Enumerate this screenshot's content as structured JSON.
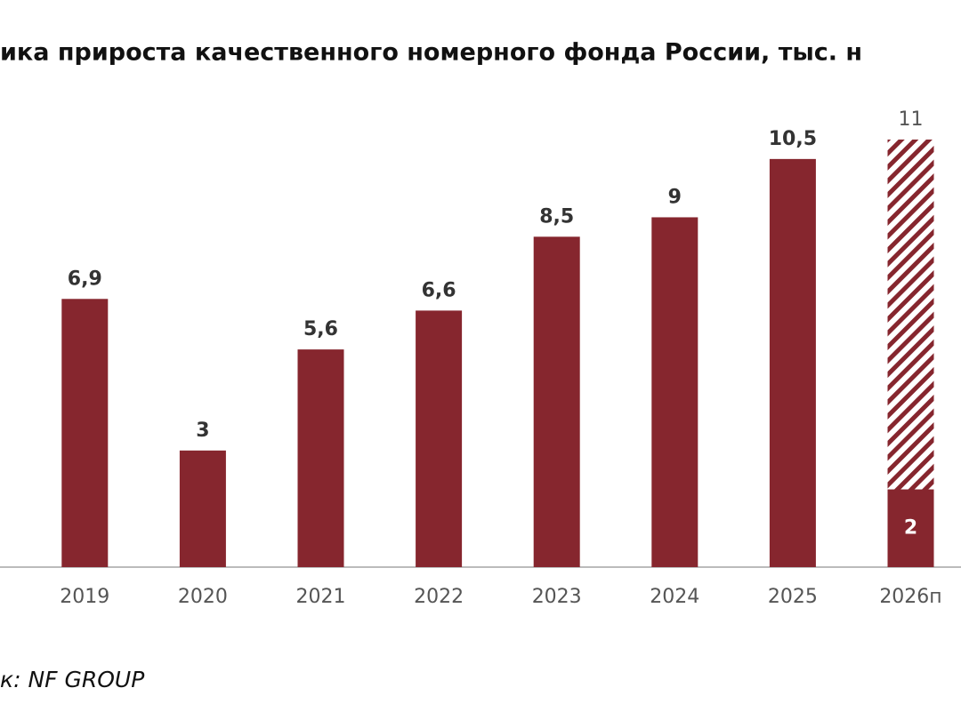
{
  "chart_data": {
    "type": "bar",
    "title": "ика прироста качественного номерного фонда России, тыс. н",
    "source": "к: NF GROUP",
    "categories": [
      "2019",
      "2020",
      "2021",
      "2022",
      "2023",
      "2024",
      "2025",
      "2026п"
    ],
    "ylim": [
      0,
      11
    ],
    "series": [
      {
        "color": "#86262e",
        "pattern": "hatch",
        "values": [
          null,
          null,
          null,
          null,
          null,
          null,
          null,
          11
        ]
      },
      {
        "color": "#86262e",
        "values": [
          6.9,
          3,
          5.6,
          6.6,
          8.5,
          9,
          10.5,
          2
        ],
        "value_labels": [
          "6,9",
          "3",
          "5,6",
          "6,6",
          "8,5",
          "9",
          "10,5",
          "2"
        ]
      }
    ]
  }
}
